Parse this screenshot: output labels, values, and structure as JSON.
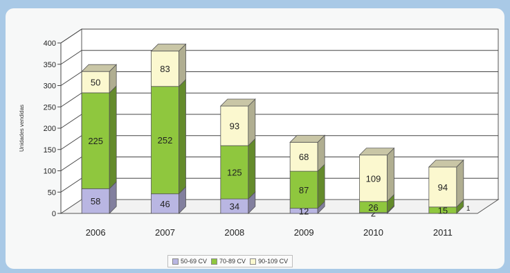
{
  "chart_data": {
    "type": "bar",
    "stacked": true,
    "three_d": true,
    "categories": [
      "2006",
      "2007",
      "2008",
      "2009",
      "2010",
      "2011"
    ],
    "ylabel": "Unidades vendidas",
    "ylim": [
      0,
      400
    ],
    "yticks": [
      "0",
      "50",
      "100",
      "150",
      "200",
      "250",
      "300",
      "350",
      "400"
    ],
    "grid": true,
    "legend_position": "bottom",
    "series": [
      {
        "name": "50-69 CV",
        "color": "#b9b6e2",
        "values": [
          58,
          46,
          34,
          12,
          2,
          0
        ],
        "labels": [
          "58",
          "46",
          "34",
          "12",
          "2",
          ""
        ]
      },
      {
        "name": "70-89 CV",
        "color": "#8fc73e",
        "values": [
          225,
          252,
          125,
          87,
          26,
          15
        ],
        "labels": [
          "225",
          "252",
          "125",
          "87",
          "26",
          "15"
        ]
      },
      {
        "name": "90-109 CV",
        "color": "#fbf8cf",
        "values": [
          50,
          83,
          93,
          68,
          109,
          94
        ],
        "labels": [
          "50",
          "83",
          "93",
          "68",
          "109",
          "94"
        ]
      }
    ],
    "extra_label": {
      "text": "1",
      "category": "2011"
    }
  }
}
